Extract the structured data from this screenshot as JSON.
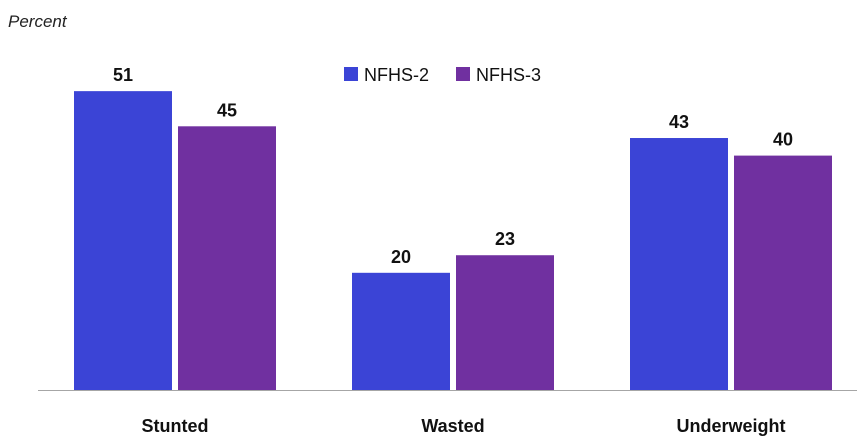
{
  "chart_data": {
    "type": "bar",
    "ylabel": "Percent",
    "categories": [
      "Stunted",
      "Wasted",
      "Underweight"
    ],
    "series": [
      {
        "name": "NFHS-2",
        "values": [
          51,
          20,
          43
        ],
        "color": "#3b44d6"
      },
      {
        "name": "NFHS-3",
        "values": [
          45,
          23,
          40
        ],
        "color": "#7030a0"
      }
    ],
    "ylim": [
      0,
      60
    ],
    "grid": false,
    "legend_position": "top-center"
  }
}
